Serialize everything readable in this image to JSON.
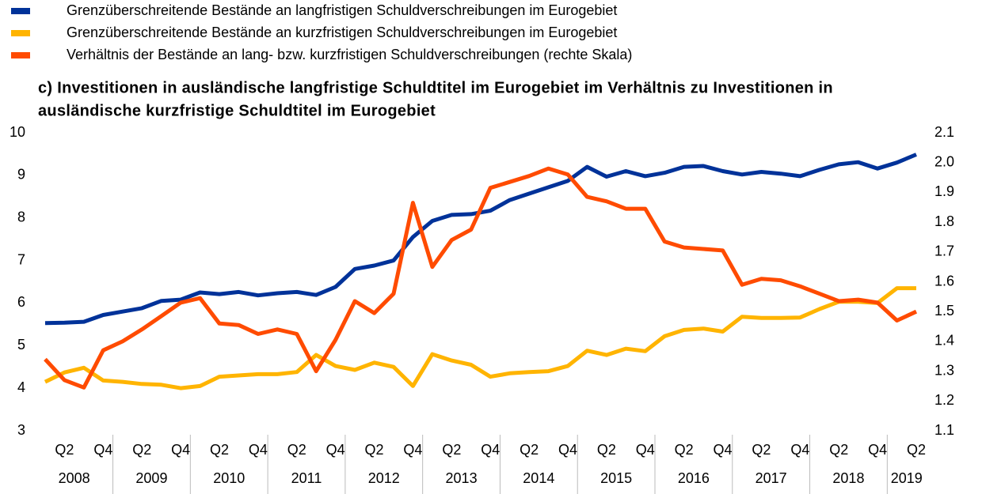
{
  "chart_data": {
    "type": "line",
    "title": [
      "c) Investitionen in ausländische langfristige Schuldtitel im Eurogebiet im Verhältnis zu Investitionen in",
      "ausländische kurzfristige Schuldtitel im Eurogebiet"
    ],
    "categories": [
      null,
      "Q2",
      null,
      "Q4",
      null,
      "Q2",
      null,
      "Q4",
      null,
      "Q2",
      null,
      "Q4",
      null,
      "Q2",
      null,
      "Q4",
      null,
      "Q2",
      null,
      "Q4",
      null,
      "Q2",
      null,
      "Q4",
      null,
      "Q2",
      null,
      "Q4",
      null,
      "Q2",
      null,
      "Q4",
      null,
      "Q2",
      null,
      "Q4",
      null,
      "Q2",
      null,
      "Q4",
      null,
      "Q2",
      null,
      "Q4",
      null,
      "Q2"
    ],
    "years": [
      "2008",
      "2009",
      "2010",
      "2011",
      "2012",
      "2013",
      "2014",
      "2015",
      "2016",
      "2017",
      "2018",
      "2019"
    ],
    "series": [
      {
        "name": "Grenzüberschreitende Bestände an langfristigen Schuldverschreibungen im Eurogebiet",
        "color": "#003299",
        "values": [
          5.53,
          5.54,
          5.56,
          5.72,
          5.8,
          5.88,
          6.05,
          6.08,
          6.25,
          6.21,
          6.26,
          6.18,
          6.23,
          6.26,
          6.19,
          6.38,
          6.8,
          6.88,
          7.0,
          7.55,
          7.93,
          8.07,
          8.09,
          8.17,
          8.42,
          8.57,
          8.72,
          8.87,
          9.2,
          8.97,
          9.1,
          8.98,
          9.06,
          9.2,
          9.22,
          9.1,
          9.02,
          9.08,
          9.04,
          8.98,
          9.13,
          9.26,
          9.31,
          9.16,
          9.3,
          9.49
        ]
      },
      {
        "name": "Grenzüberschreitende Bestände an kurzfristigen Schuldverschreibungen im Eurogebiet",
        "color": "#ffb400",
        "values": [
          4.15,
          4.37,
          4.48,
          4.18,
          4.15,
          4.1,
          4.08,
          4.0,
          4.05,
          4.27,
          4.3,
          4.33,
          4.33,
          4.38,
          4.78,
          4.52,
          4.43,
          4.6,
          4.5,
          4.05,
          4.8,
          4.65,
          4.55,
          4.27,
          4.35,
          4.38,
          4.4,
          4.52,
          4.88,
          4.78,
          4.93,
          4.87,
          5.22,
          5.37,
          5.4,
          5.33,
          5.68,
          5.65,
          5.65,
          5.66,
          5.86,
          6.03,
          6.03,
          6.0,
          6.35,
          6.35
        ]
      },
      {
        "name": "Verhältnis der Bestände an lang- bzw. kurzfristigen Schuldverschreibungen (rechte Skala)",
        "color": "#ff4b00",
        "axis": "y2",
        "values": [
          1.34,
          1.27,
          1.245,
          1.37,
          1.4,
          1.44,
          1.485,
          1.53,
          1.545,
          1.46,
          1.455,
          1.425,
          1.44,
          1.425,
          1.3,
          1.405,
          1.535,
          1.495,
          1.56,
          1.865,
          1.65,
          1.74,
          1.775,
          1.915,
          1.935,
          1.955,
          1.98,
          1.96,
          1.885,
          1.87,
          1.845,
          1.845,
          1.735,
          1.715,
          1.71,
          1.705,
          1.59,
          1.61,
          1.605,
          1.585,
          1.56,
          1.535,
          1.54,
          1.53,
          1.47,
          1.5
        ]
      }
    ],
    "ylim": [
      3,
      10
    ],
    "yticks": [
      3,
      4,
      5,
      6,
      7,
      8,
      9,
      10
    ],
    "y2lim": [
      1.1,
      2.1
    ],
    "y2ticks": [
      1.1,
      1.2,
      1.3,
      1.4,
      1.5,
      1.6,
      1.7,
      1.8,
      1.9,
      {
        "value": 2,
        "label": "2.0"
      },
      2.1
    ]
  }
}
